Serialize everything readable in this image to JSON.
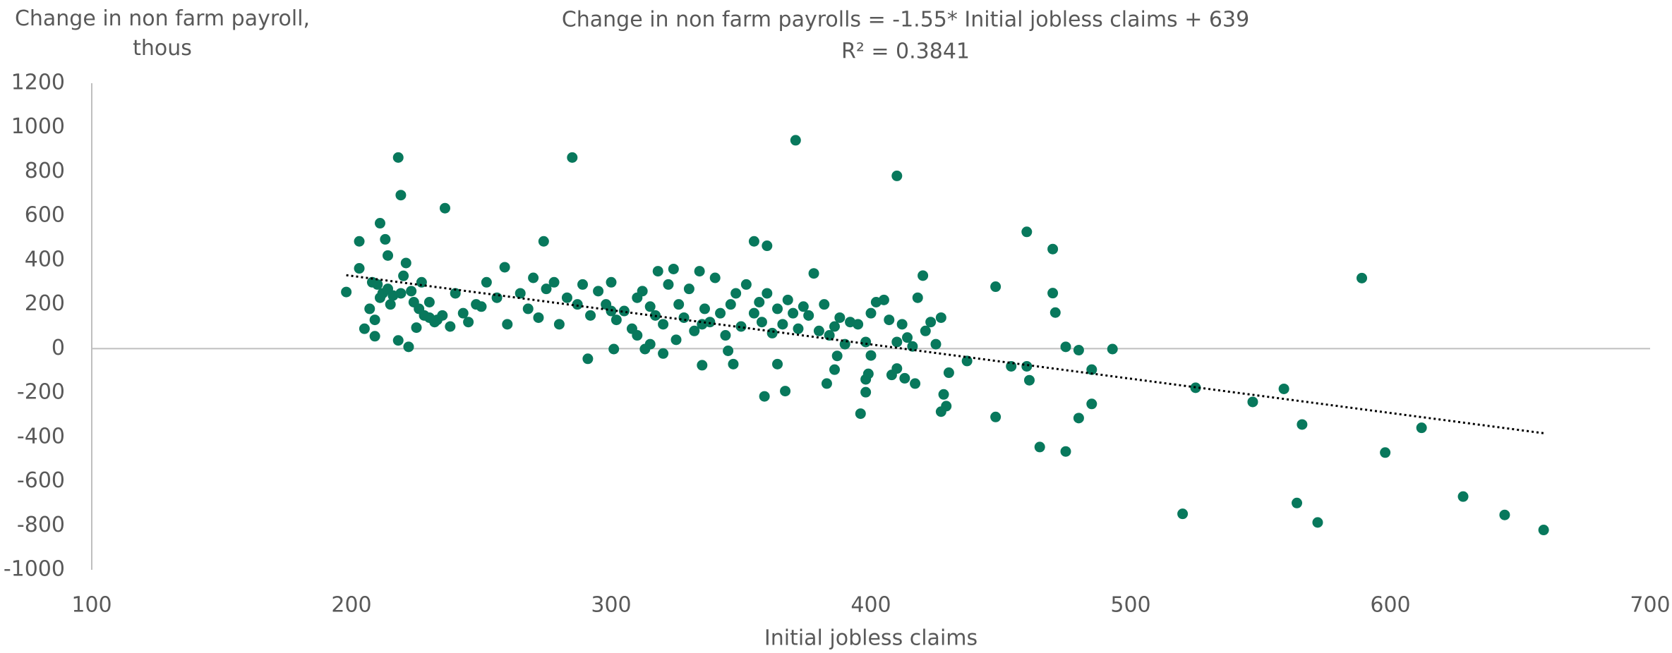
{
  "chart_data": {
    "type": "scatter",
    "title": "Change in non farm payrolls = -1.55* Initial jobless claims + 639",
    "subtitle": "R² = 0.3841",
    "y_label": "Change in non farm payroll, thous",
    "x_label": "Initial jobless claims",
    "color": "#08785c",
    "xlim": [
      100,
      700
    ],
    "xticks": [
      100,
      200,
      300,
      400,
      500,
      600,
      700
    ],
    "ylim": [
      -1000,
      1200
    ],
    "yticks": [
      -1000,
      -800,
      -600,
      -400,
      -200,
      0,
      200,
      400,
      600,
      800,
      1000,
      1200
    ],
    "grid": false,
    "trendline": {
      "slope": -1.55,
      "intercept": 639,
      "x": [
        198,
        660
      ]
    },
    "x": [
      198,
      203,
      203,
      218,
      219,
      211,
      213,
      214,
      221,
      220,
      236,
      205,
      209,
      222,
      218,
      225,
      285,
      274,
      259,
      291,
      301,
      313,
      320,
      335,
      347,
      355,
      360,
      371,
      367,
      359,
      364,
      383,
      386,
      387,
      396,
      398,
      398,
      399,
      400,
      408,
      410,
      410,
      413,
      417,
      427,
      429,
      428,
      430,
      437,
      448,
      448,
      460,
      460,
      461,
      465,
      454,
      470,
      470,
      471,
      475,
      475,
      480,
      480,
      485,
      485,
      493,
      520,
      525,
      547,
      559,
      564,
      566,
      572,
      589,
      598,
      612,
      628,
      644,
      659,
      230,
      235,
      240,
      245,
      248,
      252,
      256,
      260,
      265,
      268,
      270,
      272,
      275,
      278,
      280,
      283,
      287,
      289,
      292,
      295,
      298,
      300,
      302,
      305,
      308,
      310,
      312,
      315,
      317,
      318,
      320,
      322,
      324,
      326,
      328,
      330,
      332,
      334,
      336,
      338,
      340,
      342,
      344,
      346,
      348,
      350,
      352,
      355,
      357,
      358,
      360,
      362,
      364,
      366,
      368,
      370,
      372,
      374,
      376,
      378,
      380,
      382,
      384,
      386,
      388,
      390,
      392,
      395,
      398,
      400,
      402,
      405,
      407,
      410,
      412,
      414,
      416,
      418,
      420,
      421,
      423,
      425,
      427,
      300,
      310,
      335,
      345,
      315,
      325,
      230,
      215,
      210,
      212,
      216,
      208,
      223,
      226,
      228,
      233,
      238,
      243,
      250,
      207,
      209,
      211,
      214,
      219,
      224,
      227,
      232
    ],
    "values": [
      256,
      485,
      363,
      864,
      694,
      567,
      494,
      421,
      387,
      329,
      635,
      90,
      56,
      8,
      37,
      95,
      864,
      485,
      368,
      -46,
      -2,
      -2,
      -22,
      -75,
      -70,
      485,
      465,
      942,
      -192,
      -216,
      -70,
      -158,
      -95,
      -33,
      -294,
      -197,
      -139,
      -114,
      -31,
      -119,
      -90,
      781,
      -134,
      -158,
      -285,
      -260,
      -207,
      -109,
      -56,
      280,
      -309,
      528,
      -80,
      -143,
      -445,
      -80,
      450,
      251,
      163,
      8,
      -465,
      -7,
      -314,
      -250,
      -95,
      -2,
      -747,
      -177,
      -241,
      -182,
      -698,
      -343,
      -786,
      319,
      -470,
      -358,
      -669,
      -752,
      -820,
      210,
      150,
      250,
      120,
      200,
      300,
      230,
      110,
      250,
      180,
      320,
      140,
      270,
      300,
      110,
      230,
      200,
      290,
      150,
      260,
      200,
      300,
      130,
      170,
      90,
      230,
      260,
      190,
      150,
      350,
      110,
      290,
      360,
      200,
      140,
      270,
      80,
      350,
      180,
      120,
      320,
      160,
      60,
      200,
      250,
      100,
      290,
      160,
      210,
      120,
      250,
      70,
      180,
      110,
      220,
      160,
      90,
      190,
      150,
      340,
      80,
      200,
      60,
      100,
      140,
      20,
      120,
      110,
      30,
      160,
      210,
      220,
      130,
      30,
      110,
      50,
      10,
      230,
      330,
      80,
      120,
      20,
      140,
      170,
      60,
      110,
      -10,
      20,
      40,
      140,
      200,
      290,
      250,
      240,
      300,
      260,
      180,
      150,
      130,
      100,
      160,
      190,
      180,
      130,
      230,
      270,
      250,
      210,
      300,
      120
    ]
  }
}
